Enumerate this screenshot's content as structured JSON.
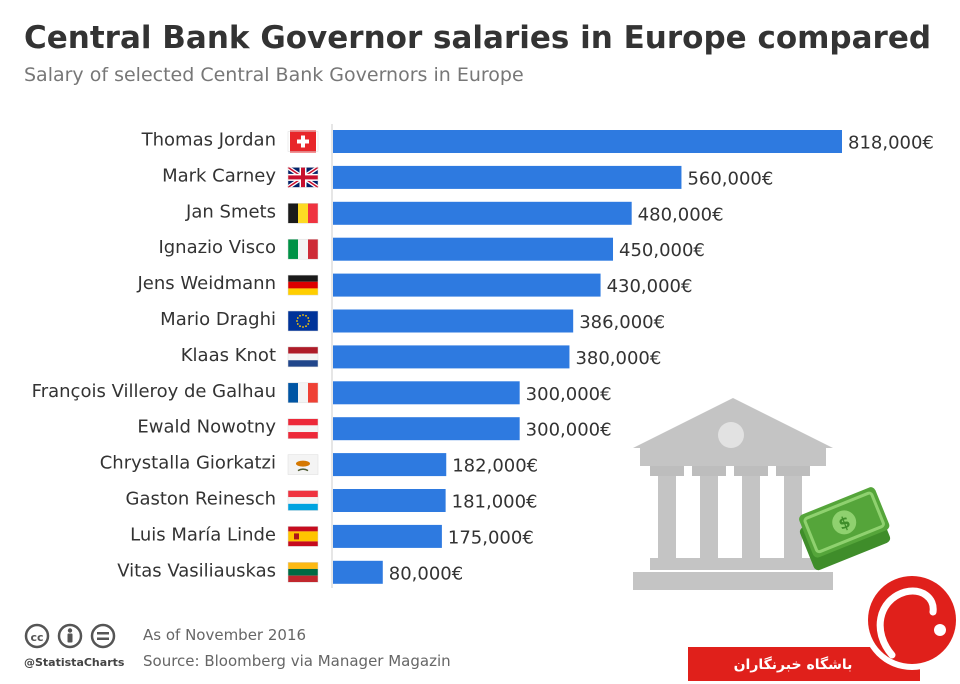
{
  "title": "Central Bank Governor salaries in Europe compared",
  "subtitle": "Salary of selected Central Bank Governors in Europe",
  "chart_data": {
    "type": "bar",
    "orientation": "horizontal",
    "categories": [
      "Thomas Jordan",
      "Mark Carney",
      "Jan Smets",
      "Ignazio Visco",
      "Jens Weidmann",
      "Mario Draghi",
      "Klaas Knot",
      "François Villeroy de Galhau",
      "Ewald Nowotny",
      "Chrystalla Giorkatzi",
      "Gaston Reinesch",
      "Luis María Linde",
      "Vitas Vasiliauskas"
    ],
    "values": [
      818000,
      560000,
      480000,
      450000,
      430000,
      386000,
      380000,
      300000,
      300000,
      182000,
      181000,
      175000,
      80000
    ],
    "value_labels": [
      "818,000€",
      "560,000€",
      "480,000€",
      "450,000€",
      "430,000€",
      "386,000€",
      "380,000€",
      "300,000€",
      "300,000€",
      "182,000€",
      "181,000€",
      "175,000€",
      "80,000€"
    ],
    "flags": [
      "switzerland-flag",
      "uk-flag",
      "belgium-flag",
      "italy-flag",
      "germany-flag",
      "eu-flag",
      "netherlands-flag",
      "france-flag",
      "austria-flag",
      "cyprus-flag",
      "luxembourg-flag",
      "spain-flag",
      "lithuania-flag"
    ],
    "bar_color": "#2e7ae0",
    "xlim": [
      0,
      818000
    ],
    "grid": false,
    "legend": "none"
  },
  "footer": {
    "date_note": "As of November 2016",
    "source": "Source: Bloomberg via Manager Magazin",
    "brand": "@StatistaCharts"
  },
  "watermark": {
    "text": "باشگاه خبرنگاران"
  },
  "colors": {
    "bar": "#2e7ae0",
    "watermark_red": "#e0201b",
    "illustration_gray": "#c4c4c4",
    "money_green": "#55a53a"
  }
}
